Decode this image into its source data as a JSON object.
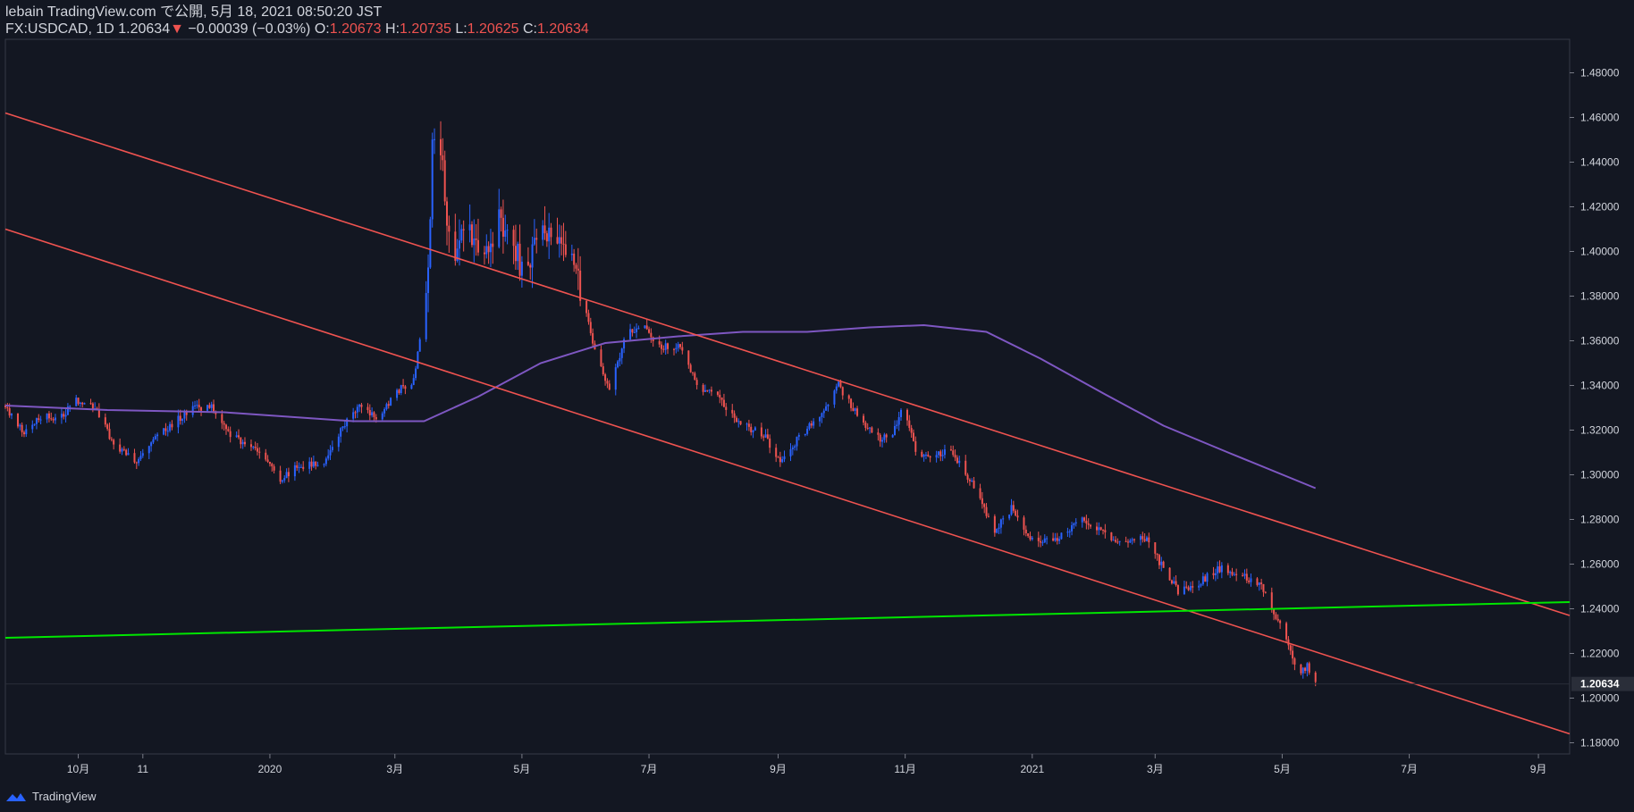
{
  "header": {
    "line1": "lebain TradingView.com で公開, 5月 18, 2021 08:50:20 JST",
    "symbol": "FX:USDCAD, 1D",
    "last": "1.20634",
    "arrow": "▼",
    "change": "−0.00039 (−0.03%)",
    "o_label": "O:",
    "o_value": "1.20673",
    "h_label": "H:",
    "h_value": "1.20735",
    "l_label": "L:",
    "l_value": "1.20625",
    "c_label": "C:",
    "c_value": "1.20634"
  },
  "footer": {
    "brand": "TradingView"
  },
  "colors": {
    "background": "#131722",
    "up": "#2962ff",
    "down": "#ef5350",
    "ma": "#7e57c2",
    "channel": "#ef5350",
    "horizontal": "#00e600",
    "grid": "#1e222d",
    "text": "#d1d4dc"
  },
  "chart_data": {
    "type": "candlestick",
    "symbol": "FX:USDCAD",
    "interval": "1D",
    "ylim": [
      1.175,
      1.495
    ],
    "y_ticks": [
      "1.18000",
      "1.20000",
      "1.22000",
      "1.24000",
      "1.26000",
      "1.28000",
      "1.30000",
      "1.32000",
      "1.34000",
      "1.36000",
      "1.38000",
      "1.40000",
      "1.42000",
      "1.44000",
      "1.46000",
      "1.48000"
    ],
    "x_labels": [
      {
        "label": "10月",
        "date": "2019-10-01"
      },
      {
        "label": "11",
        "date": "2019-11-01"
      },
      {
        "label": "2020",
        "date": "2020-01-01"
      },
      {
        "label": "3月",
        "date": "2020-03-01"
      },
      {
        "label": "5月",
        "date": "2020-05-01"
      },
      {
        "label": "7月",
        "date": "2020-07-01"
      },
      {
        "label": "9月",
        "date": "2020-09-01"
      },
      {
        "label": "11月",
        "date": "2020-11-01"
      },
      {
        "label": "2021",
        "date": "2021-01-01"
      },
      {
        "label": "3月",
        "date": "2021-03-01"
      },
      {
        "label": "5月",
        "date": "2021-05-01"
      },
      {
        "label": "7月",
        "date": "2021-07-01"
      },
      {
        "label": "9月",
        "date": "2021-09-01"
      }
    ],
    "x_range": [
      "2019-08-27",
      "2021-09-16"
    ],
    "close_path": [
      [
        "2019-08-27",
        1.331
      ],
      [
        "2019-09-05",
        1.318
      ],
      [
        "2019-09-12",
        1.326
      ],
      [
        "2019-09-24",
        1.326
      ],
      [
        "2019-09-28",
        1.334
      ],
      [
        "2019-10-08",
        1.331
      ],
      [
        "2019-10-20",
        1.311
      ],
      [
        "2019-10-30",
        1.306
      ],
      [
        "2019-11-05",
        1.314
      ],
      [
        "2019-11-13",
        1.321
      ],
      [
        "2019-11-25",
        1.33
      ],
      [
        "2019-12-05",
        1.33
      ],
      [
        "2019-12-12",
        1.318
      ],
      [
        "2019-12-20",
        1.314
      ],
      [
        "2019-12-28",
        1.31
      ],
      [
        "2020-01-05",
        1.298
      ],
      [
        "2020-01-15",
        1.304
      ],
      [
        "2020-01-28",
        1.306
      ],
      [
        "2020-02-05",
        1.322
      ],
      [
        "2020-02-13",
        1.33
      ],
      [
        "2020-02-22",
        1.325
      ],
      [
        "2020-03-03",
        1.338
      ],
      [
        "2020-03-10",
        1.342
      ],
      [
        "2020-03-13",
        1.362
      ],
      [
        "2020-03-17",
        1.388
      ],
      [
        "2020-03-19",
        1.452
      ],
      [
        "2020-03-23",
        1.445
      ],
      [
        "2020-03-26",
        1.415
      ],
      [
        "2020-03-30",
        1.4
      ],
      [
        "2020-04-04",
        1.415
      ],
      [
        "2020-04-12",
        1.395
      ],
      [
        "2020-04-20",
        1.415
      ],
      [
        "2020-04-27",
        1.405
      ],
      [
        "2020-05-01",
        1.39
      ],
      [
        "2020-05-08",
        1.405
      ],
      [
        "2020-05-16",
        1.41
      ],
      [
        "2020-05-26",
        1.395
      ],
      [
        "2020-05-30",
        1.38
      ],
      [
        "2020-06-04",
        1.36
      ],
      [
        "2020-06-12",
        1.338
      ],
      [
        "2020-06-20",
        1.362
      ],
      [
        "2020-06-28",
        1.368
      ],
      [
        "2020-07-06",
        1.357
      ],
      [
        "2020-07-15",
        1.358
      ],
      [
        "2020-07-24",
        1.34
      ],
      [
        "2020-08-03",
        1.335
      ],
      [
        "2020-08-15",
        1.322
      ],
      [
        "2020-08-25",
        1.318
      ],
      [
        "2020-09-02",
        1.306
      ],
      [
        "2020-09-12",
        1.318
      ],
      [
        "2020-09-22",
        1.328
      ],
      [
        "2020-09-30",
        1.34
      ],
      [
        "2020-10-08",
        1.328
      ],
      [
        "2020-10-18",
        1.316
      ],
      [
        "2020-10-26",
        1.318
      ],
      [
        "2020-10-31",
        1.332
      ],
      [
        "2020-11-06",
        1.31
      ],
      [
        "2020-11-14",
        1.308
      ],
      [
        "2020-11-22",
        1.312
      ],
      [
        "2020-12-03",
        1.296
      ],
      [
        "2020-12-14",
        1.275
      ],
      [
        "2020-12-22",
        1.285
      ],
      [
        "2021-01-02",
        1.27
      ],
      [
        "2021-01-14",
        1.272
      ],
      [
        "2021-01-24",
        1.28
      ],
      [
        "2021-02-03",
        1.275
      ],
      [
        "2021-02-14",
        1.268
      ],
      [
        "2021-02-24",
        1.272
      ],
      [
        "2021-03-05",
        1.258
      ],
      [
        "2021-03-12",
        1.248
      ],
      [
        "2021-03-22",
        1.252
      ],
      [
        "2021-04-01",
        1.258
      ],
      [
        "2021-04-12",
        1.255
      ],
      [
        "2021-04-21",
        1.251
      ],
      [
        "2021-04-27",
        1.238
      ],
      [
        "2021-05-03",
        1.228
      ],
      [
        "2021-05-08",
        1.212
      ],
      [
        "2021-05-13",
        1.214
      ],
      [
        "2021-05-17",
        1.20634
      ]
    ],
    "moving_average": [
      [
        "2019-08-27",
        1.331
      ],
      [
        "2019-10-15",
        1.329
      ],
      [
        "2019-12-10",
        1.328
      ],
      [
        "2020-02-10",
        1.324
      ],
      [
        "2020-03-15",
        1.324
      ],
      [
        "2020-04-10",
        1.335
      ],
      [
        "2020-05-10",
        1.35
      ],
      [
        "2020-06-10",
        1.359
      ],
      [
        "2020-07-15",
        1.362
      ],
      [
        "2020-08-15",
        1.364
      ],
      [
        "2020-09-15",
        1.364
      ],
      [
        "2020-10-15",
        1.366
      ],
      [
        "2020-11-10",
        1.367
      ],
      [
        "2020-12-10",
        1.364
      ],
      [
        "2021-01-05",
        1.352
      ],
      [
        "2021-02-05",
        1.336
      ],
      [
        "2021-03-05",
        1.322
      ],
      [
        "2021-04-05",
        1.31
      ],
      [
        "2021-05-17",
        1.294
      ]
    ],
    "channel_upper": [
      [
        "2019-08-27",
        1.462
      ],
      [
        "2021-09-16",
        1.237
      ]
    ],
    "channel_lower": [
      [
        "2019-08-27",
        1.41
      ],
      [
        "2021-09-16",
        1.184
      ]
    ],
    "horizontal_line": [
      [
        "2019-08-27",
        1.227
      ],
      [
        "2021-09-16",
        1.243
      ]
    ],
    "last_price_label": "1.20634",
    "grid": false,
    "legend": "none"
  }
}
